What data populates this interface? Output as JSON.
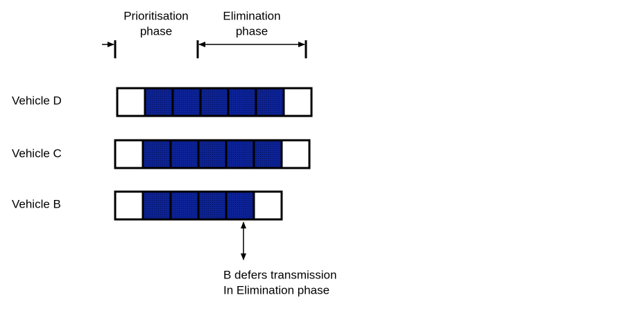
{
  "phases": [
    {
      "lines": [
        "Prioritisation",
        "phase"
      ]
    },
    {
      "lines": [
        "Elimination",
        "phase"
      ]
    }
  ],
  "vehicles": [
    {
      "label": "Vehicle D"
    },
    {
      "label": "Vehicle C"
    },
    {
      "label": "Vehicle B"
    }
  ],
  "annotation": {
    "lines": [
      "B defers transmission",
      "In Elimination phase"
    ]
  }
}
